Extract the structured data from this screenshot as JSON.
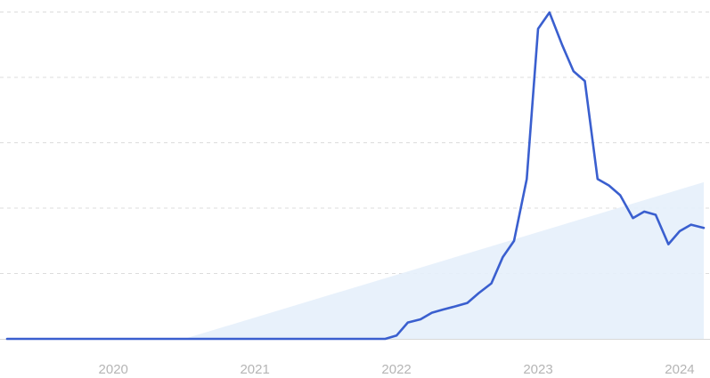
{
  "chart_data": {
    "type": "line",
    "title": "",
    "xlabel": "",
    "ylabel": "",
    "x_tick_labels": [
      "2020",
      "2021",
      "2022",
      "2023",
      "2024"
    ],
    "x_ticks": [
      2020.0,
      2021.0,
      2022.0,
      2023.0,
      2024.0
    ],
    "xlim": [
      2019.25,
      2024.17
    ],
    "ylim": [
      0,
      100
    ],
    "grid": true,
    "legend": "none",
    "colors": {
      "line": "#3a5fcf",
      "trend_fill": "#e6f0fb",
      "grid": "#dcdcdc",
      "baseline": "#d8d8d8",
      "tick_text": "#b5b5b5"
    },
    "trend_area": {
      "x": [
        2020.5,
        2024.17
      ],
      "y": [
        0,
        48
      ]
    },
    "series": [
      {
        "x": [
          2019.25,
          2021.92,
          2022.0,
          2022.08,
          2022.17,
          2022.25,
          2022.33,
          2022.42,
          2022.5,
          2022.58,
          2022.67,
          2022.75,
          2022.83,
          2022.92,
          2023.0,
          2023.08,
          2023.17,
          2023.25,
          2023.33,
          2023.42,
          2023.5,
          2023.58,
          2023.67,
          2023.75,
          2023.83,
          2023.92,
          2024.0,
          2024.08,
          2024.17
        ],
        "y": [
          0,
          0,
          1,
          5,
          6,
          8,
          9,
          10,
          11,
          14,
          17,
          25,
          30,
          49,
          95,
          100,
          90,
          82,
          79,
          49,
          47,
          44,
          37,
          39,
          38,
          29,
          33,
          35,
          34
        ]
      }
    ]
  }
}
